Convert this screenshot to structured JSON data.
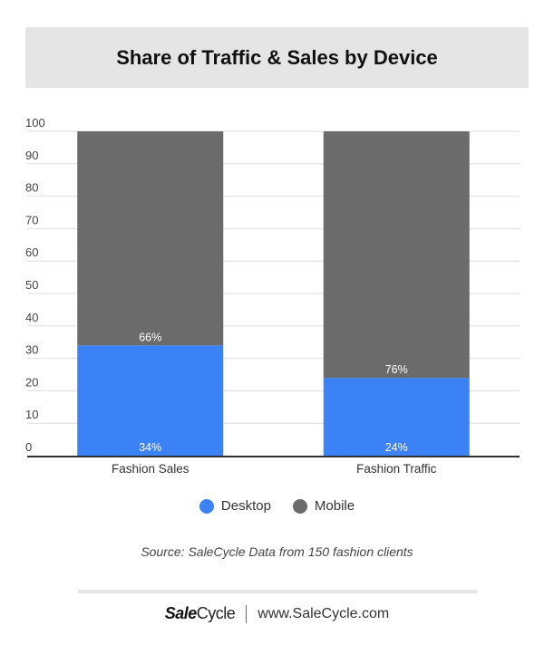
{
  "title": "Share of Traffic & Sales by Device",
  "chart_data": {
    "type": "bar",
    "stacked": true,
    "categories": [
      "Fashion Sales",
      "Fashion Traffic"
    ],
    "series": [
      {
        "name": "Desktop",
        "values": [
          34,
          24
        ],
        "labels": [
          "34%",
          "24%"
        ],
        "color": "#3b82f6"
      },
      {
        "name": "Mobile",
        "values": [
          66,
          76
        ],
        "labels": [
          "66%",
          "76%"
        ],
        "color": "#6b6b6b"
      }
    ],
    "ylim": [
      0,
      100
    ],
    "yticks": [
      0,
      10,
      20,
      30,
      40,
      50,
      60,
      70,
      80,
      90,
      100
    ],
    "grid": true,
    "legend": "bottom-center"
  },
  "legend": {
    "desktop": {
      "label": "Desktop",
      "color": "#3b82f6"
    },
    "mobile": {
      "label": "Mobile",
      "color": "#6b6b6b"
    }
  },
  "source": "Source: SaleCycle Data from 150 fashion clients",
  "footer": {
    "brand_part1": "Sale",
    "brand_part2": "Cycle",
    "url": "www.SaleCycle.com"
  }
}
